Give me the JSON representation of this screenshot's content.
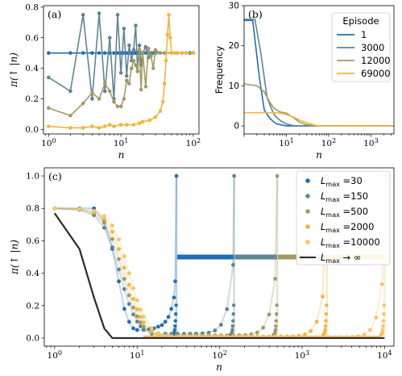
{
  "chart_data": [
    {
      "panel": "(a)",
      "type": "line",
      "xlabel": "n",
      "ylabel": "π(↑ |n)",
      "xscale": "log",
      "xlim": [
        0.85,
        120
      ],
      "ylim": [
        -0.03,
        0.81
      ],
      "xticks": [
        1,
        10,
        100
      ],
      "xtick_labels": [
        "10^0",
        "10^1",
        "10^2"
      ],
      "yticks": [
        0.0,
        0.2,
        0.4,
        0.6,
        0.8
      ],
      "ytick_labels": [
        "0.0",
        "0.2",
        "0.4",
        "0.6",
        "0.8"
      ],
      "colors": [
        "#1f6fb4",
        "#5e8591",
        "#a39a63",
        "#f2b53c"
      ],
      "series": [
        {
          "x": [
            1,
            2,
            3,
            4,
            5,
            6,
            7,
            8,
            9,
            10,
            11,
            12,
            13,
            14,
            15,
            16,
            17,
            18,
            19,
            20,
            22,
            24,
            26,
            28,
            30,
            35,
            40,
            50,
            60,
            70,
            80,
            90,
            100
          ],
          "y": [
            0.5,
            0.5,
            0.5,
            0.5,
            0.5,
            0.5,
            0.5,
            0.5,
            0.5,
            0.5,
            0.5,
            0.5,
            0.5,
            0.5,
            0.5,
            0.5,
            0.5,
            0.5,
            0.5,
            0.5,
            0.5,
            0.5,
            0.5,
            0.5,
            0.5,
            0.5,
            0.5,
            0.5,
            0.5,
            0.5,
            0.5,
            0.5,
            0.5
          ]
        },
        {
          "x": [
            1,
            2,
            3,
            4,
            5,
            6,
            7,
            8,
            9,
            10,
            11,
            12,
            13,
            14,
            15,
            16,
            17,
            18,
            19,
            20,
            22,
            24,
            26,
            30,
            40,
            60,
            100
          ],
          "y": [
            0.34,
            0.25,
            0.75,
            0.2,
            0.76,
            0.25,
            0.6,
            0.2,
            0.75,
            0.37,
            0.66,
            0.35,
            0.55,
            0.45,
            0.52,
            0.68,
            0.38,
            0.55,
            0.42,
            0.5,
            0.54,
            0.47,
            0.5,
            0.5,
            0.5,
            0.5,
            0.5
          ]
        },
        {
          "x": [
            1,
            2,
            3,
            4,
            5,
            6,
            7,
            8,
            9,
            10,
            11,
            12,
            13,
            14,
            15,
            16,
            17,
            18,
            19,
            20,
            22,
            24,
            26,
            28,
            30,
            35,
            40,
            50,
            60,
            80,
            100
          ],
          "y": [
            0.14,
            0.09,
            0.17,
            0.24,
            0.2,
            0.3,
            0.25,
            0.18,
            0.15,
            0.15,
            0.2,
            0.32,
            0.3,
            0.4,
            0.45,
            0.42,
            0.38,
            0.52,
            0.26,
            0.5,
            0.28,
            0.53,
            0.48,
            0.4,
            0.52,
            0.5,
            0.5,
            0.5,
            0.5,
            0.5,
            0.5
          ]
        },
        {
          "x": [
            1,
            2,
            3,
            4,
            5,
            6,
            7,
            8,
            10,
            12,
            15,
            18,
            20,
            25,
            30,
            35,
            38,
            40,
            42,
            44,
            46,
            48,
            50,
            55,
            60,
            70,
            80,
            100
          ],
          "y": [
            0.02,
            0.01,
            0.01,
            0.02,
            0.01,
            0.02,
            0.03,
            0.02,
            0.03,
            0.03,
            0.03,
            0.04,
            0.05,
            0.06,
            0.08,
            0.12,
            0.18,
            0.3,
            0.45,
            0.62,
            0.75,
            0.6,
            0.5,
            0.5,
            0.5,
            0.5,
            0.5,
            0.5
          ]
        }
      ]
    },
    {
      "panel": "(b)",
      "type": "line",
      "xlabel": "n",
      "ylabel": "Frequency",
      "xscale": "log",
      "xlim": [
        1,
        3500
      ],
      "ylim": [
        -2,
        30
      ],
      "xticks": [
        10,
        100,
        1000
      ],
      "xtick_labels": [
        "10^1",
        "10^2",
        "10^3"
      ],
      "yticks": [
        0,
        10,
        20,
        30
      ],
      "ytick_labels": [
        "0",
        "10",
        "20",
        "30"
      ],
      "legend": {
        "title": "Episode",
        "placement": "upper right"
      },
      "series": [
        {
          "name": "1",
          "color": "#1f6fb4",
          "x": [
            1,
            1.6,
            2.3,
            3,
            4,
            5,
            6,
            8,
            10,
            15,
            3500
          ],
          "y": [
            26.3,
            26.3,
            12,
            4,
            2,
            1,
            0.5,
            0.2,
            0,
            0,
            0
          ]
        },
        {
          "name": "3000",
          "color": "#5e8591",
          "x": [
            1,
            1.8,
            2.5,
            3.5,
            5,
            6,
            8,
            10,
            14,
            20,
            3500
          ],
          "y": [
            26.6,
            26.6,
            18,
            7,
            3,
            2,
            1,
            0.5,
            0.1,
            0,
            0
          ]
        },
        {
          "name": "12000",
          "color": "#a39a63",
          "x": [
            1,
            2,
            3,
            4,
            5,
            7,
            10,
            15,
            20,
            30,
            40,
            50,
            3500
          ],
          "y": [
            10.5,
            10,
            8.5,
            6,
            4.5,
            3.5,
            3.2,
            2,
            1,
            0.3,
            0.1,
            0,
            0
          ]
        },
        {
          "name": "69000",
          "color": "#f2b53c",
          "x": [
            1,
            5,
            7,
            10,
            15,
            20,
            30,
            40,
            50,
            60,
            3500
          ],
          "y": [
            3.3,
            3.3,
            3.2,
            2.8,
            2.2,
            1.5,
            0.8,
            0.4,
            0.1,
            0,
            0
          ]
        }
      ]
    },
    {
      "panel": "(c)",
      "type": "line",
      "xlabel": "n",
      "ylabel": "π(↑ |n)",
      "xscale": "log",
      "xlim": [
        0.75,
        13000
      ],
      "ylim": [
        -0.05,
        1.05
      ],
      "xticks": [
        1,
        10,
        100,
        1000,
        10000
      ],
      "xtick_labels": [
        "10^0",
        "10^1",
        "10^2",
        "10^3",
        "10^4"
      ],
      "yticks": [
        0.0,
        0.2,
        0.4,
        0.6,
        0.8,
        1.0
      ],
      "ytick_labels": [
        "0.0",
        "0.2",
        "0.4",
        "0.6",
        "0.8",
        "1.0"
      ],
      "legend": {
        "placement": "upper right"
      },
      "series": [
        {
          "name": "L_max = 30",
          "color": "#1f6fb4",
          "Lmax": 30,
          "x": [
            1,
            2,
            3,
            4,
            5,
            6,
            7,
            8,
            9,
            10,
            12,
            14,
            16,
            18,
            20,
            22,
            24,
            26,
            28,
            29,
            30
          ],
          "y": [
            0.8,
            0.8,
            0.8,
            0.72,
            0.55,
            0.35,
            0.18,
            0.1,
            0.06,
            0.05,
            0.05,
            0.055,
            0.06,
            0.07,
            0.08,
            0.1,
            0.13,
            0.18,
            0.25,
            0.35,
            1.0
          ]
        },
        {
          "name": "L_max = 150",
          "color": "#5e8591",
          "Lmax": 150
        },
        {
          "name": "L_max = 500",
          "color": "#a39a63",
          "Lmax": 500
        },
        {
          "name": "L_max = 2000",
          "color": "#f2b53c",
          "Lmax": 2000
        },
        {
          "name": "L_max = 10000",
          "color": "#f4c460",
          "Lmax": 10000
        },
        {
          "name": "L_max → ∞",
          "color": "#2a2a2a",
          "x": [
            1,
            2,
            3,
            4,
            5,
            6,
            8,
            10,
            10000
          ],
          "y": [
            0.77,
            0.55,
            0.25,
            0.06,
            0.0,
            0.0,
            0.0,
            0.0,
            0.0
          ]
        }
      ]
    }
  ]
}
